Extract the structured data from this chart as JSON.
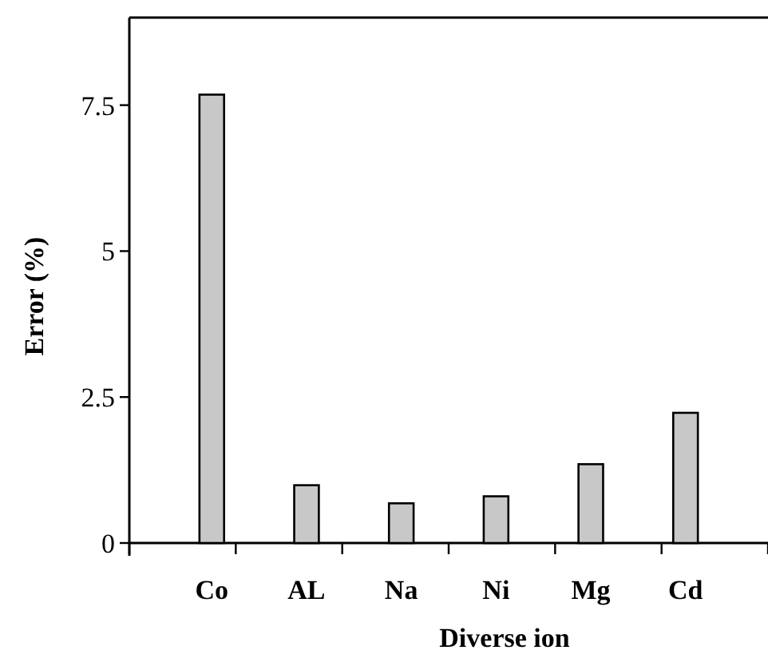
{
  "chart_data": {
    "type": "bar",
    "xlabel": "Diverse ion",
    "ylabel": "Error (%)",
    "categories": [
      "Co",
      "AL",
      "Na",
      "Ni",
      "Mg",
      "Cd"
    ],
    "values": [
      7.68,
      0.99,
      0.68,
      0.8,
      1.35,
      2.23
    ],
    "color": "#c8c8c8",
    "ylim": [
      0,
      9
    ],
    "yticks": [
      0,
      2.5,
      5,
      7.5
    ]
  }
}
